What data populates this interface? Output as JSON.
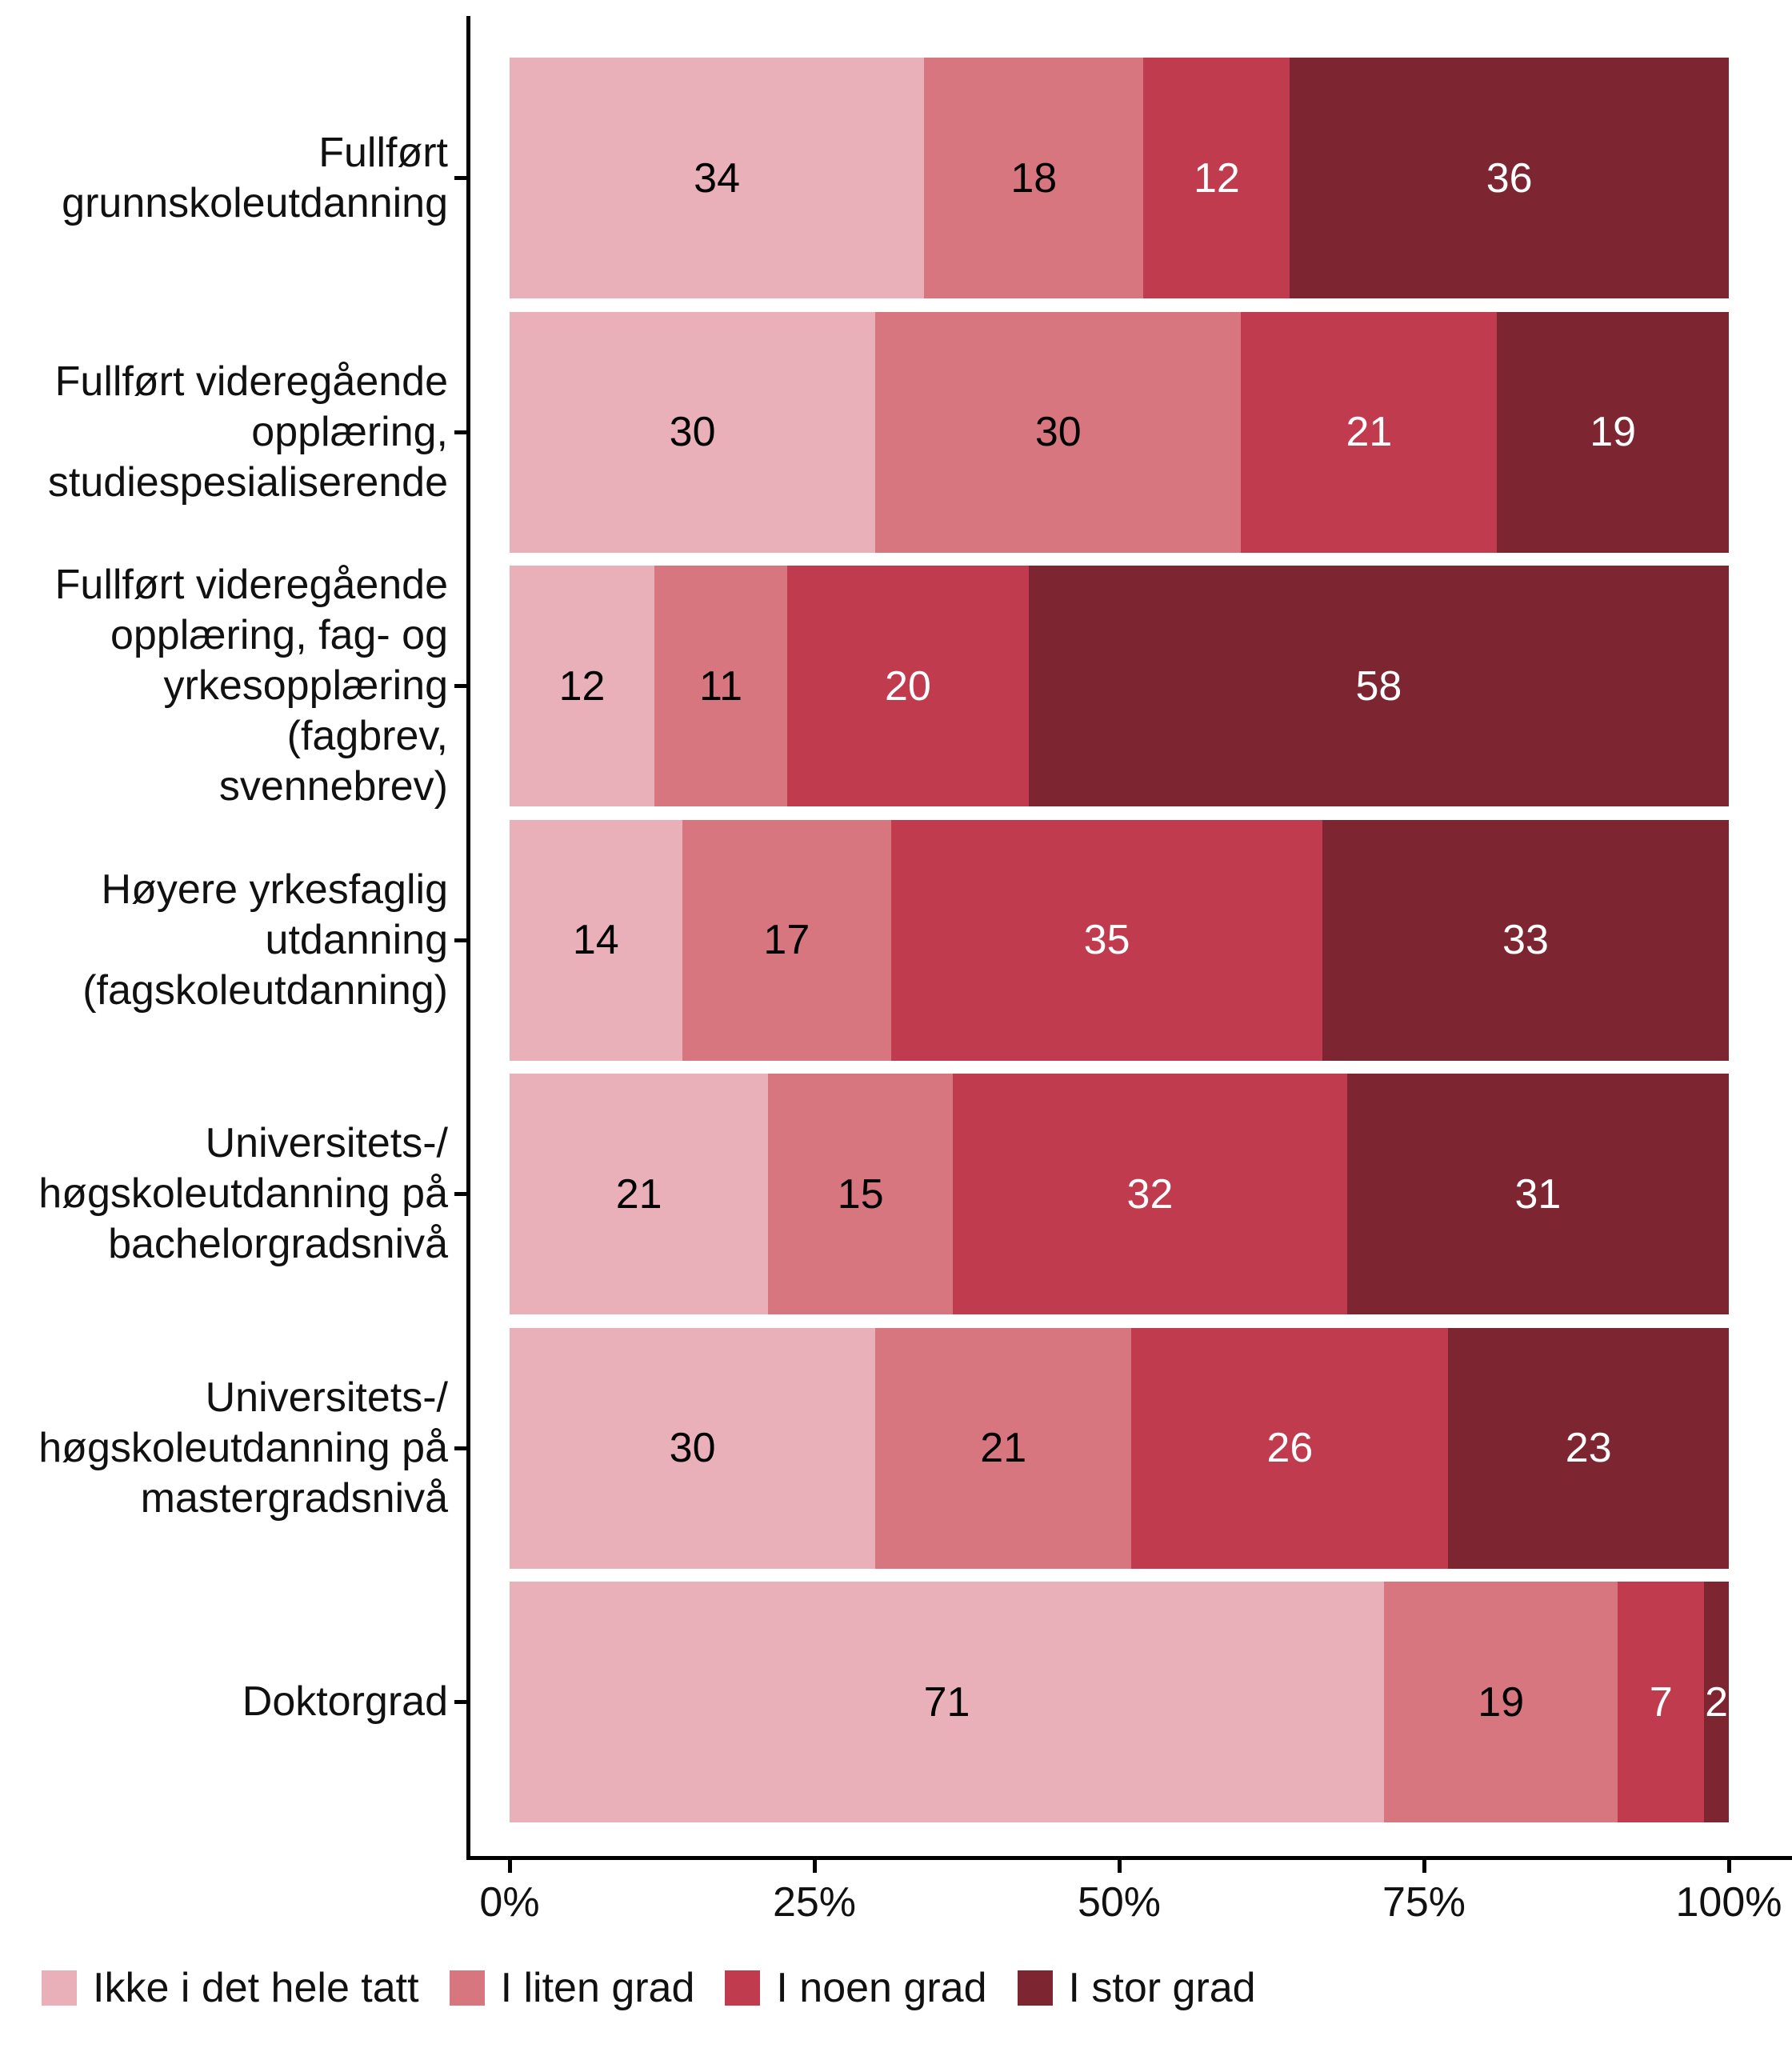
{
  "chart_data": {
    "type": "bar",
    "orientation": "horizontal",
    "stacked": true,
    "normalized": true,
    "title": "",
    "xlabel": "",
    "ylabel": "",
    "categories": [
      "Fullført\ngrunnskoleutdanning",
      "Fullført videregående\nopplæring,\nstudiespesialiserende",
      "Fullført videregående\nopplæring, fag- og\nyrkesopplæring (fagbrev,\nsvennebrev)",
      "Høyere yrkesfaglig\nutdanning\n(fagskoleutdanning)",
      "Universitets-/\nhøgskoleutdanning på\nbachelorgradsnivå",
      "Universitets-/\nhøgskoleutdanning på\nmastergradsnivå",
      "Doktorgrad"
    ],
    "series": [
      {
        "name": "Ikke i det hele tatt",
        "color": "#EAB0B9",
        "label_color": "#000000",
        "values": [
          34,
          30,
          12,
          14,
          21,
          30,
          71
        ]
      },
      {
        "name": "I liten grad",
        "color": "#D7767F",
        "label_color": "#000000",
        "values": [
          18,
          30,
          11,
          17,
          15,
          21,
          19
        ]
      },
      {
        "name": "I noen grad",
        "color": "#C13B4F",
        "label_color": "#ffffff",
        "values": [
          12,
          21,
          20,
          35,
          32,
          26,
          7
        ]
      },
      {
        "name": "I stor grad",
        "color": "#7D2631",
        "label_color": "#ffffff",
        "values": [
          36,
          19,
          58,
          33,
          31,
          23,
          2
        ]
      }
    ],
    "x_axis": {
      "tick_labels": [
        "0%",
        "25%",
        "50%",
        "75%",
        "100%"
      ],
      "tick_values": [
        0,
        25,
        50,
        75,
        100
      ],
      "range": [
        0,
        100
      ],
      "grid": false
    },
    "legend": {
      "position": "bottom-left",
      "entries": [
        "Ikke i det hele tatt",
        "I liten grad",
        "I noen grad",
        "I stor grad"
      ]
    }
  },
  "layout_colors": {
    "background": "#ffffff",
    "axis": "#000000",
    "text": "#111111"
  }
}
